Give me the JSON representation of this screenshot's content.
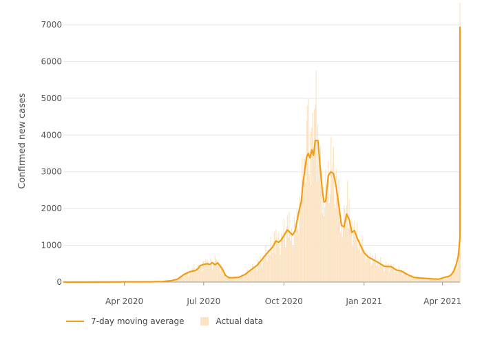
{
  "colors": {
    "average": "#f39c12",
    "actual": "#fbe3c3",
    "grid": "#e6e6e6",
    "axis": "#9a9a9a"
  },
  "legend": {
    "average_label": "7-day moving average",
    "actual_label": "Actual data"
  },
  "chart_data": {
    "type": "line",
    "ylabel": "Confirmed new cases",
    "xlabel": "",
    "ylim": [
      0,
      7300
    ],
    "xlim": [
      "2020-01-22",
      "2021-04-21"
    ],
    "grid": true,
    "legend_position": "bottom-left",
    "y_ticks": [
      0,
      1000,
      2000,
      3000,
      4000,
      5000,
      6000,
      7000
    ],
    "x_ticks": [
      {
        "date": "2020-04-01",
        "label": "Apr 2020"
      },
      {
        "date": "2020-07-01",
        "label": "Jul 2020"
      },
      {
        "date": "2020-10-01",
        "label": "Oct 2020"
      },
      {
        "date": "2021-01-01",
        "label": "Jan 2021"
      },
      {
        "date": "2021-04-01",
        "label": "Apr 2021"
      }
    ],
    "series": [
      {
        "name": "7-day moving average",
        "kind": "line",
        "points": [
          [
            "2020-01-22",
            0
          ],
          [
            "2020-03-01",
            2
          ],
          [
            "2020-04-01",
            5
          ],
          [
            "2020-05-01",
            8
          ],
          [
            "2020-05-15",
            15
          ],
          [
            "2020-05-25",
            40
          ],
          [
            "2020-06-01",
            80
          ],
          [
            "2020-06-08",
            200
          ],
          [
            "2020-06-15",
            280
          ],
          [
            "2020-06-22",
            320
          ],
          [
            "2020-06-25",
            380
          ],
          [
            "2020-06-27",
            450
          ],
          [
            "2020-07-01",
            480
          ],
          [
            "2020-07-05",
            500
          ],
          [
            "2020-07-08",
            480
          ],
          [
            "2020-07-11",
            530
          ],
          [
            "2020-07-14",
            470
          ],
          [
            "2020-07-17",
            520
          ],
          [
            "2020-07-20",
            430
          ],
          [
            "2020-07-23",
            330
          ],
          [
            "2020-07-26",
            180
          ],
          [
            "2020-07-30",
            120
          ],
          [
            "2020-08-03",
            120
          ],
          [
            "2020-08-10",
            130
          ],
          [
            "2020-08-17",
            200
          ],
          [
            "2020-08-24",
            330
          ],
          [
            "2020-08-31",
            450
          ],
          [
            "2020-09-07",
            650
          ],
          [
            "2020-09-14",
            850
          ],
          [
            "2020-09-18",
            950
          ],
          [
            "2020-09-22",
            1120
          ],
          [
            "2020-09-25",
            1080
          ],
          [
            "2020-09-28",
            1150
          ],
          [
            "2020-10-02",
            1300
          ],
          [
            "2020-10-05",
            1420
          ],
          [
            "2020-10-08",
            1350
          ],
          [
            "2020-10-11",
            1280
          ],
          [
            "2020-10-14",
            1400
          ],
          [
            "2020-10-18",
            1900
          ],
          [
            "2020-10-21",
            2200
          ],
          [
            "2020-10-23",
            2700
          ],
          [
            "2020-10-25",
            3050
          ],
          [
            "2020-10-27",
            3400
          ],
          [
            "2020-10-29",
            3500
          ],
          [
            "2020-10-31",
            3380
          ],
          [
            "2020-11-02",
            3600
          ],
          [
            "2020-11-04",
            3450
          ],
          [
            "2020-11-06",
            3850
          ],
          [
            "2020-11-09",
            3850
          ],
          [
            "2020-11-11",
            3300
          ],
          [
            "2020-11-14",
            2500
          ],
          [
            "2020-11-16",
            2180
          ],
          [
            "2020-11-18",
            2200
          ],
          [
            "2020-11-21",
            2900
          ],
          [
            "2020-11-24",
            3000
          ],
          [
            "2020-11-27",
            2950
          ],
          [
            "2020-11-30",
            2600
          ],
          [
            "2020-12-03",
            2100
          ],
          [
            "2020-12-06",
            1550
          ],
          [
            "2020-12-09",
            1500
          ],
          [
            "2020-12-12",
            1850
          ],
          [
            "2020-12-15",
            1700
          ],
          [
            "2020-12-18",
            1350
          ],
          [
            "2020-12-21",
            1400
          ],
          [
            "2020-12-24",
            1200
          ],
          [
            "2020-12-27",
            1050
          ],
          [
            "2021-01-01",
            800
          ],
          [
            "2021-01-06",
            680
          ],
          [
            "2021-01-12",
            600
          ],
          [
            "2021-01-18",
            520
          ],
          [
            "2021-01-24",
            430
          ],
          [
            "2021-02-01",
            420
          ],
          [
            "2021-02-07",
            330
          ],
          [
            "2021-02-13",
            300
          ],
          [
            "2021-02-20",
            200
          ],
          [
            "2021-02-27",
            130
          ],
          [
            "2021-03-07",
            110
          ],
          [
            "2021-03-15",
            95
          ],
          [
            "2021-03-22",
            85
          ],
          [
            "2021-03-28",
            80
          ],
          [
            "2021-04-01",
            110
          ],
          [
            "2021-04-05",
            140
          ],
          [
            "2021-04-08",
            150
          ],
          [
            "2021-04-11",
            200
          ],
          [
            "2021-04-14",
            300
          ],
          [
            "2021-04-17",
            500
          ],
          [
            "2021-04-19",
            700
          ],
          [
            "2021-04-22",
            1200
          ],
          [
            "2021-04-25",
            2400
          ],
          [
            "2021-04-28",
            4000
          ],
          [
            "2021-05-01",
            6000
          ],
          [
            "2021-05-03",
            6950
          ]
        ]
      },
      {
        "name": "Actual data",
        "kind": "bars",
        "points": [
          [
            "2020-06-20",
            500
          ],
          [
            "2020-07-05",
            620
          ],
          [
            "2020-07-14",
            700
          ],
          [
            "2020-09-20",
            1350
          ],
          [
            "2020-10-05",
            1800
          ],
          [
            "2020-10-16",
            2000
          ],
          [
            "2020-10-24",
            3400
          ],
          [
            "2020-10-27",
            4400
          ],
          [
            "2020-10-29",
            5000
          ],
          [
            "2020-10-31",
            4100
          ],
          [
            "2020-11-02",
            4200
          ],
          [
            "2020-11-05",
            4700
          ],
          [
            "2020-11-07",
            5750
          ],
          [
            "2020-11-09",
            4300
          ],
          [
            "2020-11-12",
            3700
          ],
          [
            "2020-11-21",
            3300
          ],
          [
            "2020-11-26",
            3200
          ],
          [
            "2020-12-03",
            2800
          ],
          [
            "2020-12-10",
            2000
          ],
          [
            "2020-12-13",
            2750
          ],
          [
            "2020-12-20",
            1500
          ],
          [
            "2021-01-05",
            800
          ],
          [
            "2021-04-24",
            2800
          ],
          [
            "2021-04-27",
            4500
          ],
          [
            "2021-04-30",
            5800
          ],
          [
            "2021-05-02",
            7600
          ]
        ]
      }
    ]
  }
}
